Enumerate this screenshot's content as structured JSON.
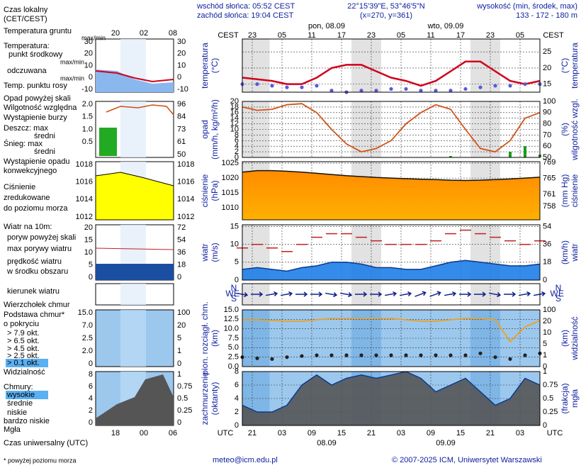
{
  "header": {
    "sunrise": "wschód słońca: 05:52 CEST",
    "sunset": "zachód słońca: 19:04 CEST",
    "coords": "22°15'39\"E, 53°46'5\"N",
    "grid_point": "(x=270, y=361)",
    "altitude_title": "wysokość (min, środek, max)",
    "altitude": "133 - 172 - 180 m"
  },
  "footer": {
    "email": "meteo@icm.edu.pl",
    "copyright": "© 2007-2025 ICM, Uniwersytet Warszawski"
  },
  "legend": {
    "items": [
      "Czas lokalny",
      "(CET/CEST)",
      "Temperatura gruntu",
      "max/min",
      "Temperatura:",
      "punkt środkowy",
      "max/min",
      "odczuwana",
      "max/min",
      "Temp. punktu rosy",
      "Opad powyżej skali",
      "Wilgotność względna",
      "Wystąpienie burzy",
      "Deszcz: max",
      "średni",
      "Śnieg: max",
      "średni",
      "Wystąpienie opadu",
      "konwekcyjnego",
      "Ciśnienie",
      "zredukowane",
      "do poziomu morza",
      "Wiatr na 10m:",
      "poryw powyżej skali",
      "max porywy wiatru",
      "prędkość wiatru",
      "w środku obszaru",
      "kierunek wiatru",
      "Wierzchołek chmur",
      "Podstawa chmur*",
      "o pokryciu",
      "> 7.9 okt.",
      "> 6.5 okt.",
      "> 4.5 okt.",
      "> 2.5 okt.",
      "> 0.1 okt.",
      "Widzialność",
      "Chmury:",
      "wysokie",
      "średnie",
      "niskie",
      "bardzo niskie",
      "Mgła",
      "Czas uniwersalny (UTC)",
      "* powyżej poziomu morza"
    ],
    "mini_top": [
      "20",
      "02",
      "08"
    ],
    "mini_bottom": [
      "18",
      "00",
      "06"
    ],
    "mini_axes": [
      {
        "left": [
          "30",
          "20",
          "10",
          "0",
          "-10"
        ],
        "right": [
          "30",
          "20",
          "10",
          "0",
          "-10"
        ]
      },
      {
        "left": [
          "2.0",
          "1.5",
          "1.0",
          "0.5"
        ],
        "right": [
          "96",
          "84",
          "73",
          "61",
          "50"
        ]
      },
      {
        "left": [
          "1018",
          "1016",
          "1014",
          "1012"
        ],
        "right": [
          "1018",
          "1016",
          "1014",
          "1012"
        ]
      },
      {
        "left": [
          "20",
          "15",
          "10",
          "5",
          "0"
        ],
        "right": [
          "72",
          "54",
          "36",
          "18",
          "0"
        ]
      },
      {
        "left": [
          "15.0",
          "7.0",
          "2.5",
          "2.0",
          "0"
        ],
        "right": [
          "100",
          "20",
          "5",
          "1",
          "0"
        ]
      },
      {
        "left": [
          "8",
          "6",
          "4",
          "2",
          "0"
        ],
        "right": [
          "1",
          "0.75",
          "0.5",
          "0.25",
          "0"
        ]
      }
    ]
  },
  "chart_data": {
    "type": "meteogram",
    "time_label_top": "CEST",
    "time_label_bottom": "UTC",
    "xlim": [
      0,
      60
    ],
    "x": [
      0,
      3,
      6,
      9,
      12,
      15,
      18,
      21,
      24,
      27,
      30,
      33,
      36,
      39,
      42,
      45,
      48,
      51,
      54,
      57,
      60
    ],
    "xticks_cest": [
      {
        "value": 2,
        "label": "23"
      },
      {
        "value": 8,
        "label": "05"
      },
      {
        "value": 14,
        "label": "11"
      },
      {
        "value": 20,
        "label": "17"
      },
      {
        "value": 26,
        "label": "23"
      },
      {
        "value": 32,
        "label": "05"
      },
      {
        "value": 38,
        "label": "11"
      },
      {
        "value": 44,
        "label": "17"
      },
      {
        "value": 50,
        "label": "23"
      },
      {
        "value": 56,
        "label": "05"
      }
    ],
    "xticks_utc": [
      {
        "value": 2,
        "label": "21"
      },
      {
        "value": 8,
        "label": "03"
      },
      {
        "value": 14,
        "label": "09"
      },
      {
        "value": 20,
        "label": "15"
      },
      {
        "value": 26,
        "label": "21"
      },
      {
        "value": 32,
        "label": "03"
      },
      {
        "value": 38,
        "label": "09"
      },
      {
        "value": 44,
        "label": "15"
      },
      {
        "value": 50,
        "label": "21"
      },
      {
        "value": 56,
        "label": "03"
      }
    ],
    "dates_top": [
      {
        "value": 17,
        "label": "pon, 08.09"
      },
      {
        "value": 41,
        "label": "wto, 09.09"
      }
    ],
    "dates_bottom": [
      {
        "value": 17,
        "label": "08.09"
      },
      {
        "value": 41,
        "label": "09.09"
      }
    ],
    "compass": [
      "N",
      "W",
      "E",
      "S"
    ],
    "panels": [
      {
        "ylabel": [
          "temperatura",
          "(°C)"
        ],
        "y2label": [
          "(°C)",
          "temperatura"
        ],
        "y2lim": [
          12.5,
          29
        ],
        "y2ticks": [
          15,
          20,
          25
        ],
        "series": [
          {
            "type": "line",
            "axis": "y2",
            "color": "#d0021b",
            "values": [
              17,
              16.5,
              16,
              15,
              15,
              17,
              20,
              21,
              21,
              19,
              17,
              16,
              14.5,
              16,
              19,
              22,
              22,
              19,
              16,
              15,
              16
            ]
          },
          {
            "type": "dots",
            "axis": "y2",
            "color": "#5a5ad8",
            "values": [
              15,
              15,
              14.5,
              14,
              14,
              14.5,
              13,
              12.5,
              13,
              13,
              13.5,
              13.5,
              13,
              13,
              13,
              13.5,
              14,
              14.5,
              14.5,
              15,
              15
            ]
          }
        ]
      },
      {
        "ylabel": [
          "opad",
          "(mm/h, kg/m²/h)"
        ],
        "y2label": [
          "(%)",
          "wilgotność wzgl."
        ],
        "ylim": [
          0,
          20
        ],
        "yticks": [
          0,
          2,
          4,
          6,
          8,
          10,
          12,
          14,
          16,
          18,
          20
        ],
        "y2lim": [
          50,
          100
        ],
        "y2ticks": [
          50,
          60,
          70,
          80,
          90,
          100
        ],
        "series": [
          {
            "type": "bars",
            "color": "#1a9a1a",
            "values": [
              0,
              0,
              0,
              0,
              0,
              0,
              0,
              0,
              0,
              0,
              0,
              0,
              0,
              0,
              0.5,
              0,
              0,
              0,
              2,
              4,
              1
            ]
          },
          {
            "type": "line",
            "axis": "y2",
            "color": "#d0541a",
            "values": [
              95,
              92,
              93,
              97,
              98,
              90,
              75,
              62,
              55,
              58,
              65,
              80,
              90,
              97,
              93,
              75,
              58,
              55,
              65,
              85,
              90
            ]
          }
        ]
      },
      {
        "ylabel": [
          "ciśnienie",
          "(hPa)"
        ],
        "y2label": [
          "(mm Hg)",
          "ciśnienie"
        ],
        "ylim": [
          1006,
          1025.5
        ],
        "yticks": [
          1010,
          1015,
          1020,
          1025
        ],
        "y2lim": [
          754.6,
          769.2
        ],
        "y2ticks": [
          758,
          761,
          765,
          769
        ],
        "series": [
          {
            "type": "area",
            "color": "#111111",
            "values": [
              1022,
              1022.5,
              1022.5,
              1022.3,
              1022,
              1021.6,
              1021.2,
              1020.8,
              1020.5,
              1020.2,
              1020,
              1019.8,
              1019.6,
              1019.5,
              1019.3,
              1019.2,
              1019.3,
              1019.5,
              1019.7,
              1020,
              1020.3
            ]
          }
        ]
      },
      {
        "ylabel": [
          "wiatr",
          "(m/s)"
        ],
        "y2label": [
          "(km/h)",
          "wiatr"
        ],
        "ylim": [
          0,
          15.5
        ],
        "yticks": [
          0,
          5,
          10,
          15
        ],
        "y2lim": [
          0,
          55.8
        ],
        "y2ticks": [
          0,
          18,
          36,
          54
        ],
        "series": [
          {
            "type": "area",
            "color": "#1e7ee8",
            "values": [
              3,
              3.5,
              3,
              2.5,
              3.5,
              4,
              5,
              5,
              4.5,
              3.5,
              3.5,
              3,
              3,
              4,
              5,
              5.5,
              5,
              4.5,
              4,
              4,
              4.5
            ]
          },
          {
            "type": "dashes",
            "color": "#c02020",
            "values": [
              9,
              10,
              9,
              8,
              10,
              12,
              13,
              13,
              12,
              11,
              10,
              10,
              10,
              11,
              13,
              14,
              13,
              12,
              11,
              10,
              11
            ]
          }
        ]
      },
      {
        "series": [
          {
            "type": "arrows",
            "color": "#10208a",
            "values": [
              280,
              270,
              260,
              260,
              270,
              270,
              280,
              280,
              270,
              270,
              260,
              260,
              250,
              250,
              260,
              270,
              270,
              280,
              270,
              260,
              260
            ]
          }
        ]
      },
      {
        "ylabel": [
          "pion. rozciągł. chm.",
          "(km)"
        ],
        "y2label": [
          "(km)",
          "widzialność"
        ],
        "ylim": [
          0,
          15
        ],
        "yticks": [
          {
            "value": 0,
            "label": "0.0"
          },
          {
            "value": 2.5,
            "label": "2.5"
          },
          {
            "value": 5,
            "label": "5.0"
          },
          {
            "value": 7.5,
            "label": "7.5"
          },
          {
            "value": 10,
            "label": "10.0"
          },
          {
            "value": 12.5,
            "label": "12.5"
          },
          {
            "value": 15,
            "label": "15.0"
          }
        ],
        "y2ticks": [
          0,
          1,
          5,
          10,
          20,
          100
        ],
        "series": [
          {
            "type": "dots",
            "color": "#222222",
            "values": [
              2.5,
              2.2,
              2,
              2.5,
              2.8,
              3,
              3,
              3,
              3,
              3,
              3,
              3,
              3,
              3,
              3,
              3,
              3.5,
              2.5,
              2,
              3,
              3.5
            ]
          },
          {
            "type": "line",
            "axis": "y2",
            "color": "#f0a020",
            "values": [
              30,
              30,
              25,
              20,
              20,
              30,
              40,
              40,
              40,
              40,
              40,
              30,
              20,
              20,
              30,
              40,
              40,
              30,
              6,
              15,
              25
            ]
          }
        ]
      },
      {
        "ylabel": [
          "zachmurzenie",
          "(oktanty)"
        ],
        "y2label": [
          "(frakcja)",
          "mgła"
        ],
        "ylim": [
          0,
          8
        ],
        "yticks": [
          0,
          2,
          4,
          6,
          8
        ],
        "y2lim": [
          0,
          1
        ],
        "y2ticks": [
          0,
          0.25,
          0.5,
          0.75,
          1
        ],
        "series": [
          {
            "type": "area",
            "color": "#555555",
            "values": [
              3,
              2,
              2,
              3,
              6,
              7.5,
              6,
              7,
              7.5,
              7,
              7.5,
              8,
              7,
              5,
              6,
              7,
              5,
              3,
              4,
              7,
              6
            ]
          }
        ]
      }
    ]
  }
}
